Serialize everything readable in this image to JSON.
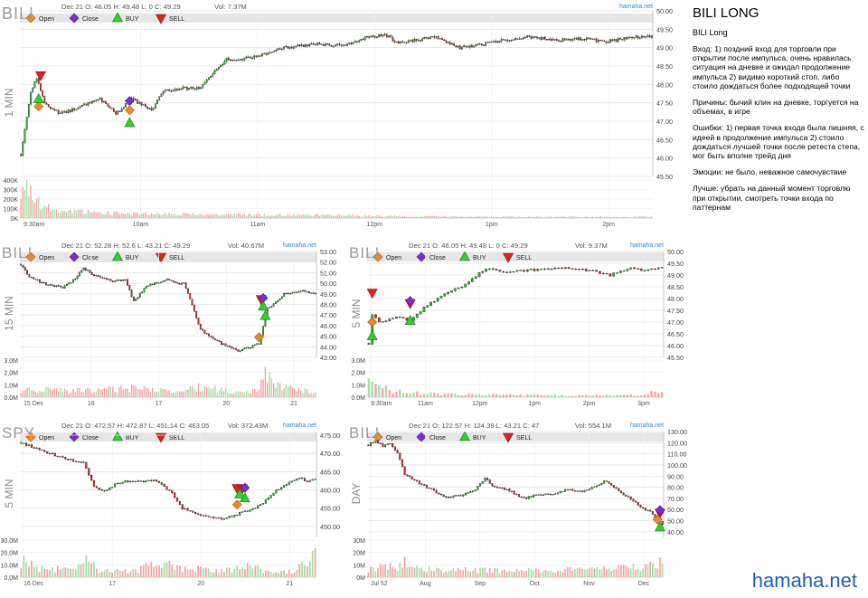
{
  "legend": {
    "open": "Open",
    "close": "Close",
    "buy": "BUY",
    "sell": "SELL"
  },
  "watermark": "hamaha.net",
  "brand": "hamaha.net",
  "note": {
    "title": "BILI LONG",
    "subtitle": "BILI Long",
    "lines": [
      "Вход: 1) поздний вход для торговли при открытии после импульса, очень нравилась ситуация на дневке и ожидал продолжение импульса 2) видимо короткий стоп, либо стоило дождаться более подходящей точки",
      "Причины: бычий клин на дневке, торгуется на объемах, в игре",
      "Ошибки: 1) первая точка входа была лишняя, с идеей в продолжение импульса 2) стоило дождаться лучшей точки после ретеста степа, мог быть вполне трейд дня",
      "Эмоции: не было, неважное самочувствие",
      "Лучше: убрать на данный момент торговлю при открытии, смотреть точки входа по паттернам"
    ]
  },
  "chart_data": [
    {
      "type": "candlestick",
      "symbol": "BILI",
      "timeframe": "1 MIN",
      "header": "Dec 21 O: 46.05 H: 49.48 L: 0 C: 49.29",
      "volume_label": "Vol: 7.37M",
      "ylim": [
        45.5,
        50.0
      ],
      "y_ticks": [
        "50.00",
        "49.50",
        "49.00",
        "48.50",
        "48.00",
        "47.50",
        "47.00",
        "46.50",
        "46.00",
        "45.50"
      ],
      "x_labels": [
        "9:30am",
        "10am",
        "11am",
        "12pm",
        "1pm",
        "2pm"
      ],
      "volume_ticks": [
        "400K",
        "300K",
        "200K",
        "100K",
        "0K"
      ],
      "volume_max": 450,
      "close_anchors": [
        [
          0,
          46.1
        ],
        [
          3,
          47.1
        ],
        [
          5,
          47.8
        ],
        [
          8,
          48.2
        ],
        [
          12,
          47.5
        ],
        [
          20,
          47.2
        ],
        [
          28,
          47.35
        ],
        [
          40,
          47.6
        ],
        [
          48,
          47.2
        ],
        [
          56,
          47.6
        ],
        [
          66,
          47.3
        ],
        [
          72,
          47.8
        ],
        [
          82,
          47.9
        ],
        [
          90,
          47.9
        ],
        [
          104,
          48.7
        ],
        [
          112,
          48.7
        ],
        [
          122,
          48.8
        ],
        [
          134,
          49.0
        ],
        [
          148,
          49.1
        ],
        [
          162,
          49.05
        ],
        [
          176,
          49.3
        ],
        [
          184,
          49.35
        ],
        [
          190,
          49.15
        ],
        [
          200,
          49.2
        ],
        [
          210,
          49.3
        ],
        [
          222,
          49.0
        ],
        [
          234,
          49.1
        ],
        [
          244,
          49.2
        ],
        [
          256,
          49.3
        ],
        [
          270,
          49.2
        ],
        [
          286,
          49.25
        ],
        [
          296,
          49.15
        ],
        [
          308,
          49.3
        ],
        [
          319,
          49.29
        ]
      ],
      "volume_anchors": [
        [
          0,
          420
        ],
        [
          4,
          300
        ],
        [
          10,
          160
        ],
        [
          20,
          90
        ],
        [
          40,
          60
        ],
        [
          60,
          50
        ],
        [
          90,
          40
        ],
        [
          120,
          40
        ],
        [
          160,
          30
        ],
        [
          200,
          20
        ],
        [
          260,
          15
        ],
        [
          319,
          15
        ]
      ],
      "markers": [
        {
          "kind": "open",
          "x": 9,
          "y": 47.4
        },
        {
          "kind": "buy",
          "x": 9,
          "y": 47.6
        },
        {
          "kind": "sell",
          "x": 10,
          "y": 48.25
        },
        {
          "kind": "close",
          "x": 55,
          "y": 47.55
        },
        {
          "kind": "buy",
          "x": 55,
          "y": 46.95
        },
        {
          "kind": "open",
          "x": 55,
          "y": 47.3
        }
      ]
    },
    {
      "type": "candlestick",
      "symbol": "BILI",
      "timeframe": "15 MIN",
      "header": "Dec 21 O: 52.28 H: 52.6 L: 43.21 C: 49.29",
      "volume_label": "Vol: 40.67M",
      "ylim": [
        43.0,
        53.0
      ],
      "y_ticks": [
        "53.00",
        "52.00",
        "51.00",
        "50.00",
        "49.00",
        "48.00",
        "47.00",
        "46.00",
        "45.00",
        "44.00",
        "43.00"
      ],
      "x_labels": [
        "15 Dec",
        "16",
        "17",
        "20",
        "21"
      ],
      "volume_ticks": [
        "3.0M",
        "2.0M",
        "1.0M",
        "0.0M"
      ],
      "volume_max": 3.4,
      "close_anchors": [
        [
          0,
          51.8
        ],
        [
          4,
          50.6
        ],
        [
          12,
          49.9
        ],
        [
          20,
          49.6
        ],
        [
          26,
          50.4
        ],
        [
          30,
          51.5
        ],
        [
          34,
          50.8
        ],
        [
          44,
          50.2
        ],
        [
          50,
          50.3
        ],
        [
          54,
          48.3
        ],
        [
          60,
          49.7
        ],
        [
          70,
          50.4
        ],
        [
          76,
          49.9
        ],
        [
          78,
          50.0
        ],
        [
          82,
          47.9
        ],
        [
          86,
          45.6
        ],
        [
          96,
          44.3
        ],
        [
          104,
          43.6
        ],
        [
          110,
          44.0
        ],
        [
          114,
          44.3
        ],
        [
          118,
          47.6
        ],
        [
          122,
          48.2
        ],
        [
          126,
          49.0
        ],
        [
          134,
          49.3
        ],
        [
          141,
          49.0
        ]
      ],
      "volume_anchors": [
        [
          0,
          0.7
        ],
        [
          30,
          0.6
        ],
        [
          54,
          0.8
        ],
        [
          78,
          0.4
        ],
        [
          82,
          1.0
        ],
        [
          104,
          0.5
        ],
        [
          114,
          0.7
        ],
        [
          116,
          2.8
        ],
        [
          120,
          1.2
        ],
        [
          141,
          0.4
        ]
      ],
      "markers": [
        {
          "kind": "sell",
          "x": 115,
          "y": 48.5
        },
        {
          "kind": "close",
          "x": 116,
          "y": 48.6
        },
        {
          "kind": "buy",
          "x": 116,
          "y": 47.8
        },
        {
          "kind": "buy",
          "x": 117,
          "y": 46.9
        },
        {
          "kind": "open",
          "x": 114,
          "y": 44.9
        }
      ]
    },
    {
      "type": "candlestick",
      "symbol": "BILI",
      "timeframe": "5 MIN",
      "header": "Dec 21 O: 46.05 H: 49.48 L: 0 C: 49.29",
      "volume_label": "Vol: 9.37M",
      "ylim": [
        45.5,
        50.0
      ],
      "y_ticks": [
        "50.00",
        "49.50",
        "49.00",
        "48.50",
        "48.00",
        "47.50",
        "47.00",
        "46.50",
        "46.00",
        "45.50"
      ],
      "x_labels": [
        "9:30am",
        "11am",
        "12pm",
        "1pm",
        "2pm",
        "3pm"
      ],
      "volume_ticks": [
        "3.0M",
        "2.0M",
        "1.0M",
        "0.0M"
      ],
      "volume_max": 3.4,
      "close_anchors": [
        [
          0,
          46.1
        ],
        [
          1,
          47.3
        ],
        [
          3,
          47.0
        ],
        [
          8,
          47.2
        ],
        [
          12,
          47.1
        ],
        [
          16,
          47.6
        ],
        [
          22,
          48.2
        ],
        [
          28,
          48.6
        ],
        [
          34,
          49.3
        ],
        [
          40,
          49.1
        ],
        [
          46,
          49.2
        ],
        [
          56,
          49.3
        ],
        [
          64,
          49.2
        ],
        [
          70,
          49.0
        ],
        [
          76,
          49.3
        ],
        [
          80,
          49.2
        ],
        [
          84,
          49.3
        ],
        [
          85,
          49.29
        ]
      ],
      "volume_anchors": [
        [
          0,
          3.1
        ],
        [
          2,
          1.2
        ],
        [
          6,
          0.6
        ],
        [
          12,
          0.4
        ],
        [
          20,
          0.3
        ],
        [
          40,
          0.2
        ],
        [
          60,
          0.15
        ],
        [
          80,
          0.2
        ],
        [
          84,
          0.6
        ],
        [
          85,
          0.7
        ]
      ],
      "markers": [
        {
          "kind": "sell",
          "x": 1,
          "y": 48.25
        },
        {
          "kind": "open",
          "x": 1,
          "y": 47.0
        },
        {
          "kind": "buy",
          "x": 1,
          "y": 46.4
        },
        {
          "kind": "sell",
          "x": 12,
          "y": 47.8
        },
        {
          "kind": "close",
          "x": 12,
          "y": 47.9
        },
        {
          "kind": "buy",
          "x": 12,
          "y": 47.05
        }
      ]
    },
    {
      "type": "candlestick",
      "symbol": "SPY",
      "timeframe": "5 MIN",
      "header": "Dec 21 O: 472.57 H: 472.87 L: 451.14 C: 463.05",
      "volume_label": "Vol: 372.43M",
      "ylim": [
        447.0,
        476.0
      ],
      "y_ticks": [
        "475.00",
        "470.00",
        "465.00",
        "460.00",
        "455.00",
        "450.00"
      ],
      "x_labels": [
        "16 Dec",
        "17",
        "20",
        "21"
      ],
      "volume_ticks": [
        "30.0M",
        "20.0M",
        "10.0M",
        "0.0M"
      ],
      "volume_max": 32,
      "close_anchors": [
        [
          0,
          473.0
        ],
        [
          5,
          471.5
        ],
        [
          12,
          469.8
        ],
        [
          20,
          468.0
        ],
        [
          24,
          467.5
        ],
        [
          28,
          461.0
        ],
        [
          32,
          459.5
        ],
        [
          36,
          461.5
        ],
        [
          40,
          462.5
        ],
        [
          44,
          462.2
        ],
        [
          52,
          462.6
        ],
        [
          58,
          459.0
        ],
        [
          62,
          455.0
        ],
        [
          70,
          453.0
        ],
        [
          78,
          452.0
        ],
        [
          86,
          454.2
        ],
        [
          90,
          455.0
        ],
        [
          94,
          457.0
        ],
        [
          98,
          460.0
        ],
        [
          104,
          462.5
        ],
        [
          108,
          463.3
        ],
        [
          110,
          462.0
        ],
        [
          113,
          463.05
        ]
      ],
      "volume_anchors": [
        [
          0,
          14
        ],
        [
          6,
          8
        ],
        [
          20,
          6
        ],
        [
          27,
          18
        ],
        [
          30,
          6
        ],
        [
          44,
          5
        ],
        [
          56,
          16
        ],
        [
          58,
          8
        ],
        [
          80,
          6
        ],
        [
          88,
          12
        ],
        [
          92,
          6
        ],
        [
          104,
          5
        ],
        [
          113,
          18
        ]
      ],
      "markers": [
        {
          "kind": "sell",
          "x": 83,
          "y": 460.5
        },
        {
          "kind": "sell",
          "x": 85,
          "y": 460.4
        },
        {
          "kind": "close",
          "x": 86,
          "y": 460.6
        },
        {
          "kind": "buy",
          "x": 84,
          "y": 458.8
        },
        {
          "kind": "buy",
          "x": 86,
          "y": 457.7
        },
        {
          "kind": "open",
          "x": 83,
          "y": 456.0
        }
      ]
    },
    {
      "type": "candlestick",
      "symbol": "BILI",
      "timeframe": "DAY",
      "header": "Dec 21 O: 122.57 H: 124.39 L: 43.21 C: 47",
      "volume_label": "Vol: 554.1M",
      "ylim": [
        35.0,
        130.0
      ],
      "y_ticks": [
        "130.00",
        "120.00",
        "110.00",
        "100.00",
        "90.00",
        "80.00",
        "70.00",
        "60.00",
        "50.00",
        "40.00"
      ],
      "x_labels": [
        "Jul 52",
        "Aug",
        "Sep",
        "Oct",
        "Nov",
        "Dec"
      ],
      "volume_ticks": [
        "30M",
        "20M",
        "10M",
        "0M"
      ],
      "volume_max": 36,
      "close_anchors": [
        [
          0,
          118.0
        ],
        [
          3,
          122.0
        ],
        [
          6,
          117.0
        ],
        [
          9,
          120.0
        ],
        [
          12,
          110.0
        ],
        [
          15,
          92.0
        ],
        [
          20,
          85.0
        ],
        [
          26,
          78.0
        ],
        [
          32,
          70.0
        ],
        [
          38,
          73.0
        ],
        [
          44,
          78.0
        ],
        [
          48,
          88.0
        ],
        [
          52,
          80.0
        ],
        [
          58,
          77.0
        ],
        [
          64,
          70.0
        ],
        [
          70,
          74.0
        ],
        [
          76,
          73.0
        ],
        [
          82,
          78.0
        ],
        [
          88,
          76.0
        ],
        [
          94,
          82.0
        ],
        [
          98,
          86.0
        ],
        [
          100,
          82.0
        ],
        [
          104,
          74.0
        ],
        [
          108,
          70.0
        ],
        [
          112,
          62.0
        ],
        [
          116,
          58.0
        ],
        [
          119,
          50.0
        ],
        [
          121,
          47.0
        ]
      ],
      "volume_anchors": [
        [
          0,
          8
        ],
        [
          12,
          10
        ],
        [
          14,
          15
        ],
        [
          20,
          8
        ],
        [
          40,
          7
        ],
        [
          60,
          6
        ],
        [
          80,
          7
        ],
        [
          100,
          8
        ],
        [
          112,
          10
        ],
        [
          118,
          13
        ],
        [
          121,
          14
        ]
      ],
      "markers": [
        {
          "kind": "sell",
          "x": 120,
          "y": 57.0
        },
        {
          "kind": "close",
          "x": 120,
          "y": 59.5
        },
        {
          "kind": "buy",
          "x": 120,
          "y": 44.0
        },
        {
          "kind": "open",
          "x": 119,
          "y": 51.0
        }
      ]
    }
  ]
}
